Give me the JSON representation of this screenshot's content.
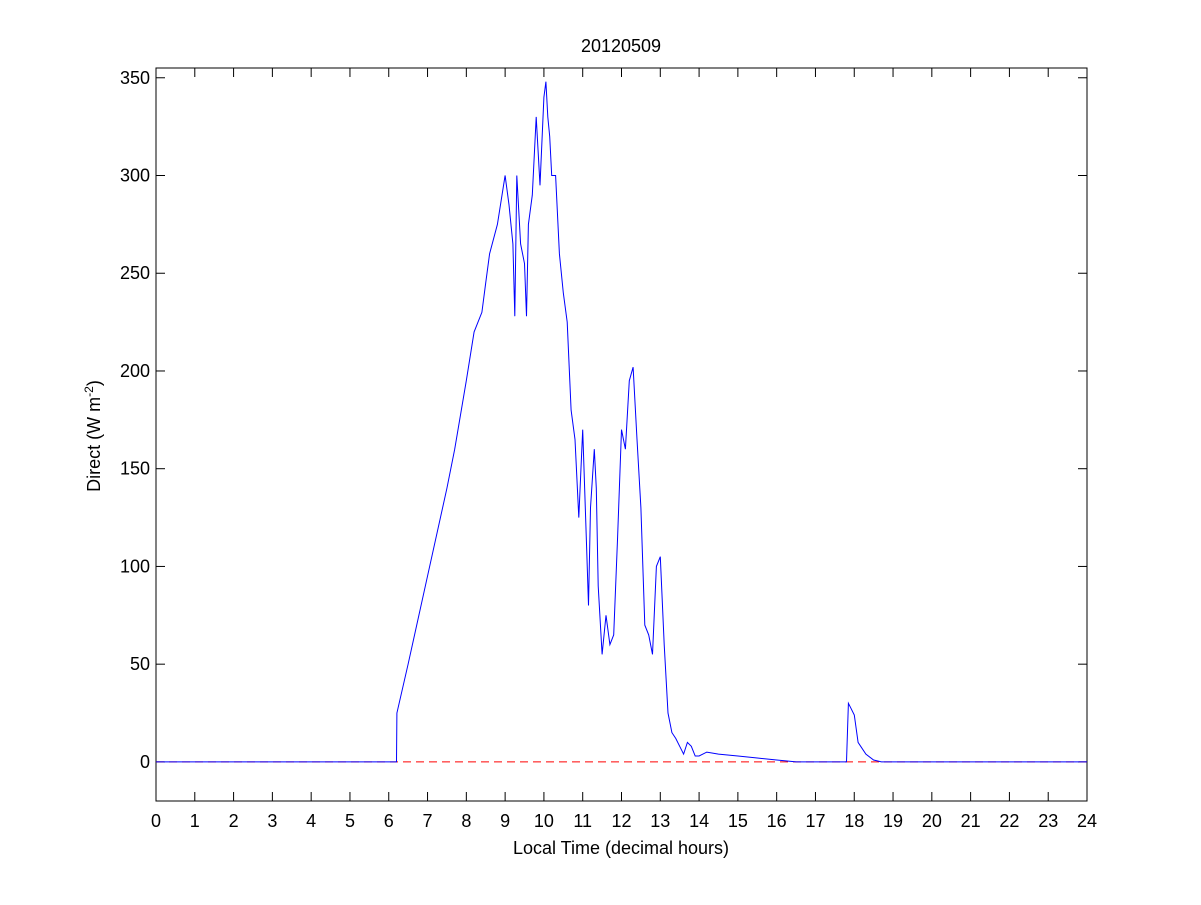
{
  "chart_data": {
    "type": "line",
    "title": "20120509",
    "xlabel": "Local Time (decimal hours)",
    "ylabel": "Direct (W m",
    "ylabel_sup": "-2",
    "ylabel_close": ")",
    "xlim": [
      0,
      24
    ],
    "ylim": [
      -20,
      355
    ],
    "xticks": [
      0,
      1,
      2,
      3,
      4,
      5,
      6,
      7,
      8,
      9,
      10,
      11,
      12,
      13,
      14,
      15,
      16,
      17,
      18,
      19,
      20,
      21,
      22,
      23,
      24
    ],
    "yticks": [
      0,
      50,
      100,
      150,
      200,
      250,
      300,
      350
    ],
    "grid": false,
    "legend": "none",
    "reference_line": {
      "y": 0,
      "style": "dashed",
      "color": "#ff0000"
    },
    "series": [
      {
        "color": "#0000ff",
        "x": [
          0,
          1,
          2,
          3,
          4,
          5,
          6,
          6.2,
          6.21,
          6.5,
          7,
          7.5,
          7.7,
          8,
          8.2,
          8.4,
          8.5,
          8.6,
          8.8,
          9.0,
          9.1,
          9.2,
          9.25,
          9.3,
          9.4,
          9.5,
          9.55,
          9.6,
          9.7,
          9.8,
          9.9,
          10.0,
          10.05,
          10.1,
          10.15,
          10.2,
          10.3,
          10.4,
          10.5,
          10.6,
          10.7,
          10.8,
          10.9,
          11.0,
          11.1,
          11.15,
          11.2,
          11.3,
          11.35,
          11.4,
          11.5,
          11.6,
          11.7,
          11.8,
          11.9,
          12.0,
          12.1,
          12.2,
          12.3,
          12.4,
          12.5,
          12.6,
          12.7,
          12.8,
          12.9,
          13.0,
          13.1,
          13.2,
          13.3,
          13.4,
          13.5,
          13.6,
          13.7,
          13.8,
          13.9,
          14.0,
          14.2,
          14.5,
          15.0,
          15.5,
          16.0,
          16.5,
          17.0,
          17.5,
          17.8,
          17.85,
          17.9,
          18.0,
          18.1,
          18.3,
          18.5,
          18.7,
          19.0,
          20.0,
          21.0,
          22.0,
          23.0,
          24.0
        ],
        "y": [
          0,
          0,
          0,
          0,
          0,
          0,
          0,
          0,
          25,
          50,
          95,
          140,
          160,
          195,
          220,
          230,
          245,
          260,
          275,
          300,
          285,
          265,
          228,
          300,
          265,
          255,
          228,
          275,
          290,
          330,
          295,
          340,
          348,
          330,
          320,
          300,
          300,
          260,
          240,
          225,
          180,
          165,
          125,
          170,
          110,
          80,
          130,
          160,
          140,
          90,
          55,
          75,
          60,
          65,
          115,
          170,
          160,
          195,
          202,
          165,
          130,
          70,
          65,
          55,
          100,
          105,
          60,
          25,
          15,
          12,
          8,
          4,
          10,
          8,
          3,
          3,
          5,
          4,
          3,
          2,
          1,
          0,
          0,
          0,
          0,
          30,
          28,
          24,
          10,
          4,
          1,
          0,
          0,
          0,
          0,
          0,
          0,
          0
        ]
      }
    ]
  }
}
